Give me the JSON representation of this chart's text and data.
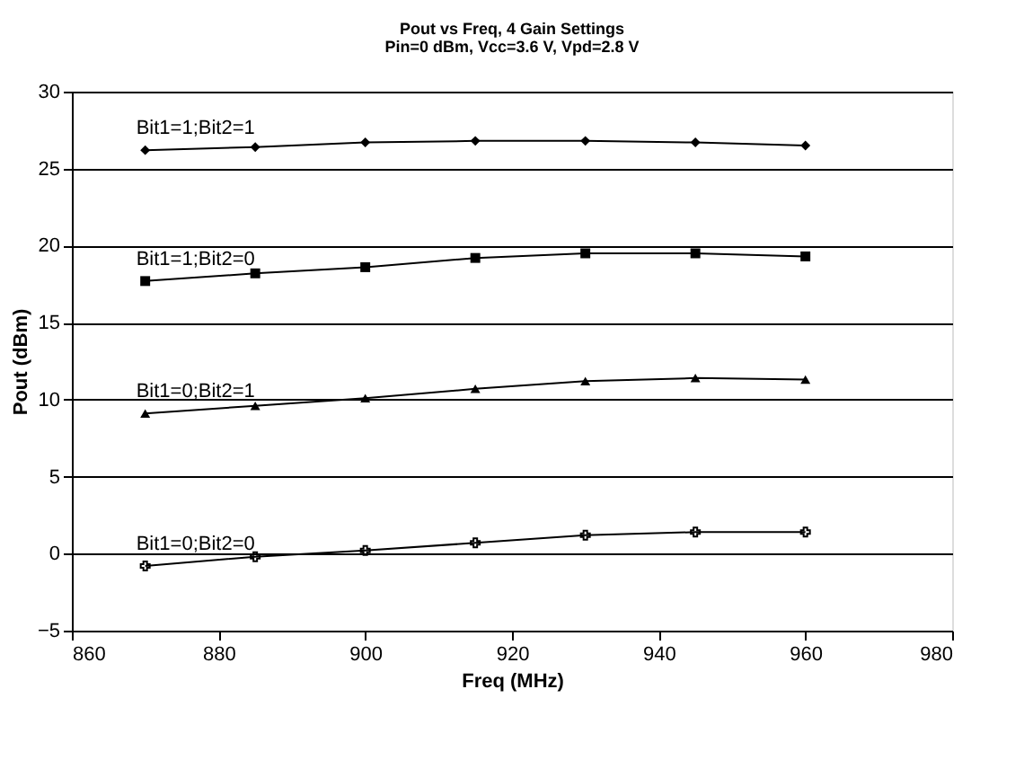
{
  "chart_data": {
    "type": "line",
    "title": "Pout vs Freq, 4 Gain Settings",
    "subtitle": "Pin=0 dBm, Vcc=3.6 V, Vpd=2.8 V",
    "xlabel": "Freq (MHz)",
    "ylabel": "Pout (dBm)",
    "x": [
      870,
      885,
      900,
      915,
      930,
      945,
      960
    ],
    "series": [
      {
        "name": "Bit1=1;Bit2=1",
        "color": "#000000",
        "marker": "diamond",
        "values": [
          26.2,
          26.4,
          26.7,
          26.8,
          26.8,
          26.7,
          26.5
        ]
      },
      {
        "name": "Bit1=1;Bit2=0",
        "color": "#000000",
        "marker": "square",
        "values": [
          17.7,
          18.2,
          18.6,
          19.2,
          19.5,
          19.5,
          19.3
        ]
      },
      {
        "name": "Bit1=0;Bit2=1",
        "color": "#000000",
        "marker": "triangle",
        "values": [
          9.1,
          9.6,
          10.1,
          10.7,
          11.2,
          11.4,
          11.3
        ]
      },
      {
        "name": "Bit1=0;Bit2=0",
        "color": "#000000",
        "marker": "cross",
        "values": [
          -0.8,
          -0.2,
          0.2,
          0.7,
          1.2,
          1.4,
          1.4
        ]
      }
    ],
    "xlim": [
      860,
      980
    ],
    "xticks": [
      860,
      880,
      900,
      920,
      940,
      960,
      980
    ],
    "ylim": [
      -5,
      30
    ],
    "yticks": [
      -5,
      0,
      5,
      10,
      15,
      20,
      25,
      30
    ],
    "grid": "y",
    "legend": false,
    "line_style": "solid"
  }
}
